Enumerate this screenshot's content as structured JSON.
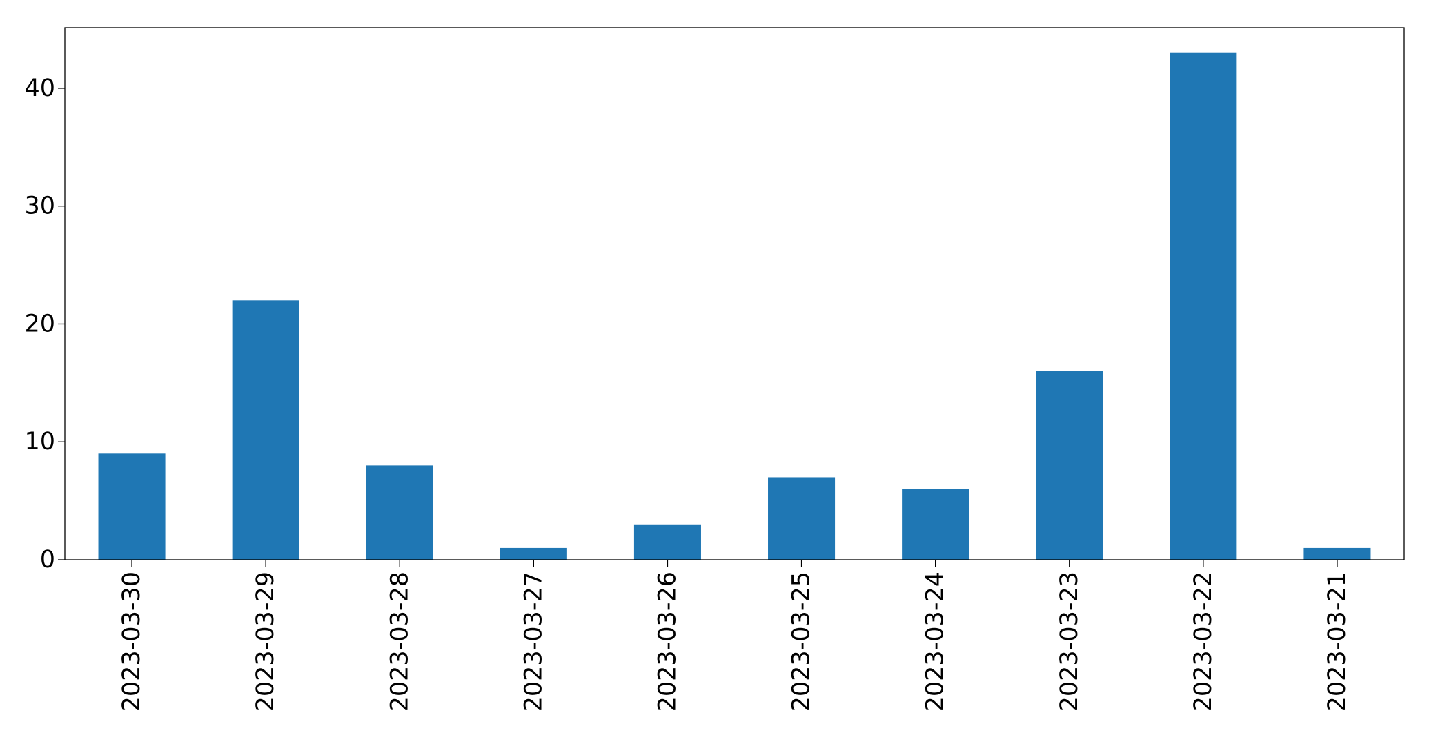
{
  "chart_data": {
    "type": "bar",
    "title": "",
    "xlabel": "",
    "ylabel": "",
    "categories": [
      "2023-03-30",
      "2023-03-29",
      "2023-03-28",
      "2023-03-27",
      "2023-03-26",
      "2023-03-25",
      "2023-03-24",
      "2023-03-23",
      "2023-03-22",
      "2023-03-21"
    ],
    "values": [
      9,
      22,
      8,
      1,
      3,
      7,
      6,
      16,
      43,
      1
    ],
    "ylim": [
      0,
      45.15
    ],
    "yticks": [
      0,
      10,
      20,
      30,
      40
    ],
    "grid": false,
    "legend": "none",
    "bar_color": "#1f77b4"
  }
}
